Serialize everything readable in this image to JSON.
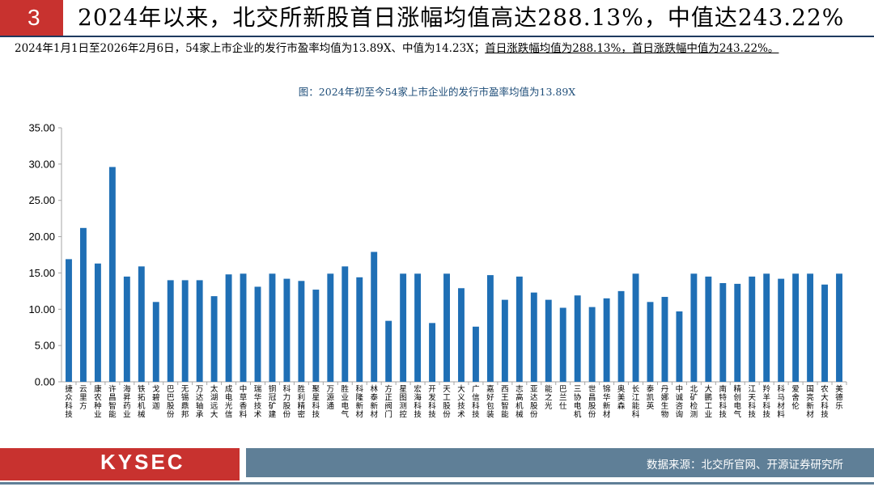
{
  "header": {
    "section_number": "3",
    "title": "2024年以来，北交所新股首日涨幅均值高达288.13%，中值达243.22%"
  },
  "summary": {
    "text_plain": "2024年1月1日至2026年2月6日，54家上市企业的发行市盈率均值为13.89X、中值为14.23X；",
    "text_underlined": "首日涨跌幅均值为288.13%，首日涨跌幅中值为243.22%。"
  },
  "chart_caption": "图：2024年初至今54家上市企业的发行市盈率均值为13.89X",
  "footer": {
    "logo_text": "KYSEC",
    "source": "数据来源：北交所官网、开源证券研究所"
  },
  "colors": {
    "brand_red": "#c8322f",
    "bar_blue": "#1f6fb5",
    "footer_gray_blue": "#5f7f97",
    "caption_blue": "#1f4e79"
  },
  "chart_data": {
    "type": "bar",
    "title": "",
    "xlabel": "",
    "ylabel": "",
    "ylim": [
      0,
      35
    ],
    "yticks": [
      "0.00",
      "5.00",
      "10.00",
      "15.00",
      "20.00",
      "25.00",
      "30.00",
      "35.00"
    ],
    "grid": false,
    "legend": "none",
    "categories": [
      "捷众科技",
      "云里方",
      "康农种业",
      "许昌智能",
      "海昇药业",
      "铁拓机械",
      "戈碧迦",
      "巴巴股份",
      "无锡鼎邦",
      "万达轴承",
      "太湖远大",
      "成电光信",
      "中草香料",
      "瑞华技术",
      "铜冠矿建",
      "科力股份",
      "胜利精密",
      "聚星科技",
      "万源通",
      "胜业电气",
      "科隆新材",
      "林泰新材",
      "方正阀门",
      "星图测控",
      "宏海科技",
      "开发科技",
      "天工股份",
      "大义技术",
      "广信科技",
      "嘉好包装",
      "西王智能",
      "志高机械",
      "亚达股份",
      "能之光",
      "巴兰仕",
      "三协电机",
      "世昌股份",
      "锦华新材",
      "奥美森",
      "长江能科",
      "泰凯英",
      "丹娜生物",
      "中诚咨询",
      "北矿检测",
      "大鹏工业",
      "南特科技",
      "精创电气",
      "江天科技",
      "羚羊科技",
      "科马材料",
      "爱舍伦",
      "国亮新材",
      "农大科技",
      "美德乐"
    ],
    "values": [
      16.9,
      21.2,
      16.3,
      29.6,
      14.5,
      15.9,
      11.0,
      14.0,
      14.0,
      14.0,
      11.8,
      14.8,
      14.9,
      13.1,
      14.9,
      14.2,
      13.9,
      12.7,
      14.9,
      15.9,
      14.4,
      17.9,
      8.4,
      14.9,
      14.9,
      8.1,
      14.9,
      12.9,
      7.6,
      14.7,
      11.3,
      14.5,
      12.3,
      11.3,
      10.2,
      11.9,
      10.3,
      11.5,
      12.5,
      14.9,
      11.0,
      11.7,
      9.7,
      14.9,
      14.5,
      13.6,
      13.5,
      14.5,
      14.9,
      14.2,
      14.9,
      14.9,
      13.4,
      14.9
    ]
  }
}
